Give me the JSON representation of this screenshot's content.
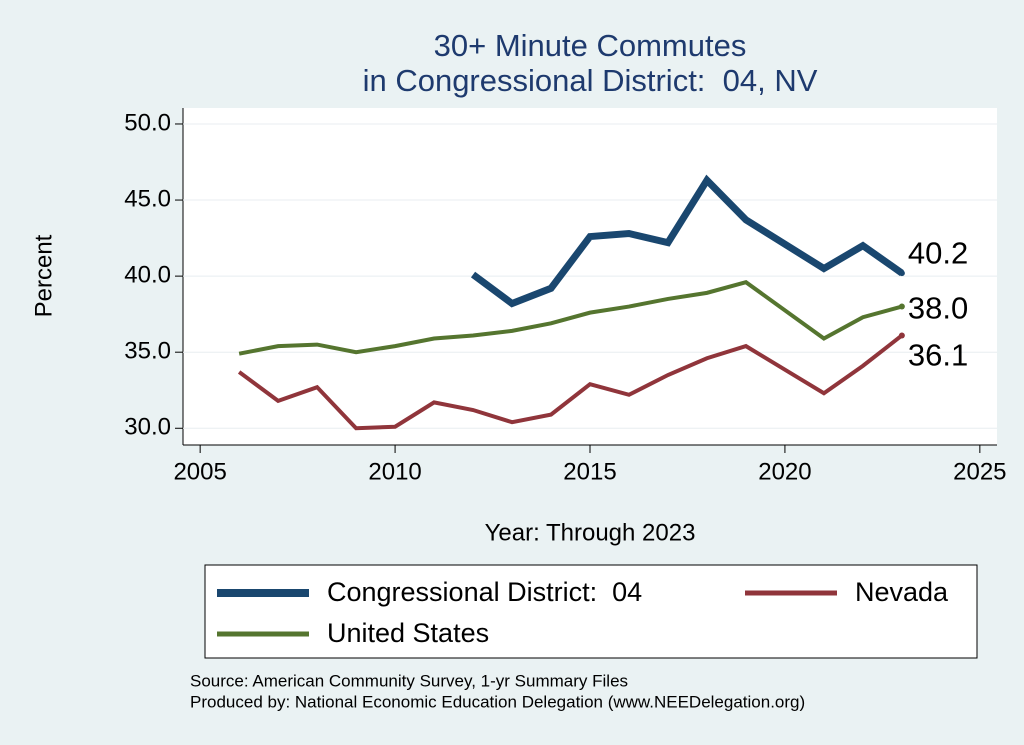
{
  "chart_data": {
    "type": "line",
    "title": [
      "30+ Minute Commutes",
      "in Congressional District:  04, NV"
    ],
    "xlabel": "Year: Through 2023",
    "ylabel": "Percent",
    "xlim": [
      2004.56,
      2025.44
    ],
    "ylim": [
      28.9,
      51.05
    ],
    "xticks": [
      2005,
      2010,
      2015,
      2020,
      2025
    ],
    "yticks": [
      {
        "value": 30,
        "label": "30.0"
      },
      {
        "value": 35,
        "label": "35.0"
      },
      {
        "value": 40,
        "label": "40.0"
      },
      {
        "value": 45,
        "label": "45.0"
      },
      {
        "value": 50,
        "label": "50.0"
      }
    ],
    "grid": true,
    "series": [
      {
        "name": "Congressional District:  04",
        "color": "#1a476f",
        "width": 7,
        "x": [
          2012,
          2013,
          2014,
          2015,
          2016,
          2017,
          2018,
          2019,
          2021,
          2022,
          2023
        ],
        "values": [
          40.1,
          38.2,
          39.2,
          42.6,
          42.8,
          42.2,
          46.3,
          43.7,
          40.5,
          42.0,
          40.2
        ],
        "end_label": "40.2"
      },
      {
        "name": "Nevada",
        "color": "#90353b",
        "width": 4,
        "x": [
          2006,
          2007,
          2008,
          2009,
          2010,
          2011,
          2012,
          2013,
          2014,
          2015,
          2016,
          2017,
          2018,
          2019,
          2021,
          2022,
          2023
        ],
        "values": [
          33.7,
          31.8,
          32.7,
          30.0,
          30.1,
          31.7,
          31.2,
          30.4,
          30.9,
          32.9,
          32.2,
          33.5,
          34.6,
          35.4,
          32.3,
          34.1,
          36.1
        ],
        "end_label": "36.1"
      },
      {
        "name": "United States",
        "color": "#55752f",
        "width": 4,
        "x": [
          2006,
          2007,
          2008,
          2009,
          2010,
          2011,
          2012,
          2013,
          2014,
          2015,
          2016,
          2017,
          2018,
          2019,
          2021,
          2022,
          2023
        ],
        "values": [
          34.9,
          35.4,
          35.5,
          35.0,
          35.4,
          35.9,
          36.1,
          36.4,
          36.9,
          37.6,
          38.0,
          38.5,
          38.9,
          39.6,
          35.9,
          37.3,
          38.0
        ],
        "end_label": "38.0"
      }
    ],
    "notes": [
      "Source: American Community Survey, 1-yr Summary Files",
      "Produced by: National Economic Education Delegation (www.NEEDelegation.org)"
    ]
  }
}
